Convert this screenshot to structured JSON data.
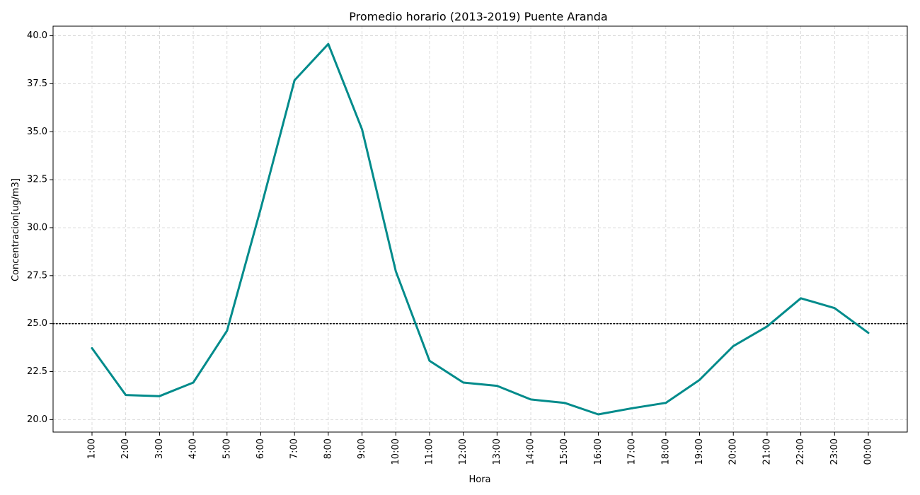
{
  "chart_data": {
    "type": "line",
    "title": "Promedio horario (2013-2019) Puente Aranda",
    "xlabel": "Hora",
    "ylabel": "Concentracion[ug/m3]",
    "categories": [
      "1:00",
      "2:00",
      "3:00",
      "4:00",
      "5:00",
      "6:00",
      "7:00",
      "8:00",
      "9:00",
      "10:00",
      "11:00",
      "12:00",
      "13:00",
      "14:00",
      "15:00",
      "16:00",
      "17:00",
      "18:00",
      "19:00",
      "20:00",
      "21:00",
      "22:00",
      "23:00",
      "00:00"
    ],
    "series": [
      {
        "color": "#008b8b",
        "values": [
          23.72,
          21.28,
          21.22,
          21.93,
          24.63,
          31.0,
          37.68,
          39.57,
          35.12,
          27.73,
          23.06,
          21.93,
          21.76,
          21.05,
          20.87,
          20.27,
          20.59,
          20.87,
          22.07,
          23.83,
          24.85,
          26.32,
          25.81,
          24.52
        ]
      }
    ],
    "reference_line": {
      "value": 25.0,
      "color": "#000000",
      "style": "dotted"
    },
    "ylim": [
      19.35,
      40.5
    ],
    "yticks": [
      20.0,
      22.5,
      25.0,
      27.5,
      30.0,
      32.5,
      35.0,
      37.5,
      40.0
    ],
    "ytick_labels": [
      "20.0",
      "22.5",
      "25.0",
      "27.5",
      "30.0",
      "32.5",
      "35.0",
      "37.5",
      "40.0"
    ],
    "grid": true,
    "legend": "none"
  }
}
